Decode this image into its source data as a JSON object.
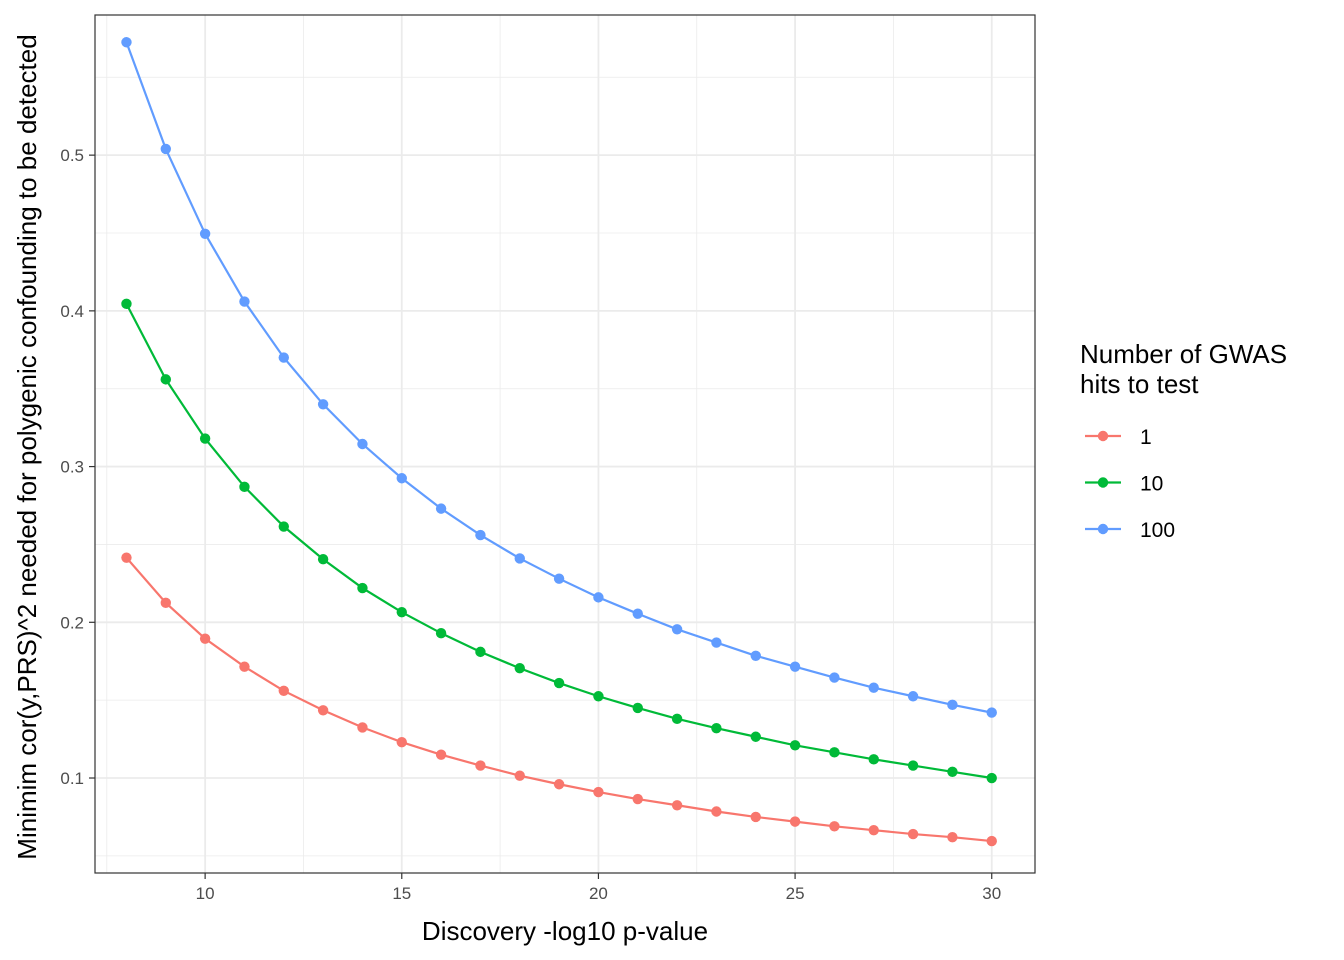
{
  "chart_data": {
    "type": "line",
    "xlabel": "Discovery -log10 p-value",
    "ylabel": "Minimim cor(y,PRS)^2 needed for polygenic confounding to be detected",
    "xlim": [
      7.2,
      31.1
    ],
    "ylim": [
      0.039,
      0.59
    ],
    "x_ticks": [
      10,
      15,
      20,
      25,
      30
    ],
    "x_tick_labels": [
      "10",
      "15",
      "20",
      "25",
      "30"
    ],
    "y_ticks": [
      0.1,
      0.2,
      0.3,
      0.4,
      0.5
    ],
    "y_tick_labels": [
      "0.1",
      "0.2",
      "0.3",
      "0.4",
      "0.5"
    ],
    "grid": true,
    "legend": {
      "title_lines": [
        "Number of GWAS",
        "hits to test"
      ],
      "position": "right"
    },
    "x": [
      8,
      9,
      10,
      11,
      12,
      13,
      14,
      15,
      16,
      17,
      18,
      19,
      20,
      21,
      22,
      23,
      24,
      25,
      26,
      27,
      28,
      29,
      30
    ],
    "series": [
      {
        "name": "1",
        "color": "#F8766D",
        "values": [
          0.2415,
          0.2125,
          0.1895,
          0.1715,
          0.156,
          0.1435,
          0.1325,
          0.123,
          0.115,
          0.108,
          0.1015,
          0.096,
          0.091,
          0.0865,
          0.0825,
          0.0785,
          0.075,
          0.072,
          0.069,
          0.0665,
          0.064,
          0.062,
          0.0595
        ]
      },
      {
        "name": "10",
        "color": "#00BA38",
        "values": [
          0.4045,
          0.356,
          0.318,
          0.287,
          0.2615,
          0.2405,
          0.222,
          0.2065,
          0.193,
          0.181,
          0.1705,
          0.161,
          0.1525,
          0.145,
          0.138,
          0.132,
          0.1265,
          0.121,
          0.1165,
          0.112,
          0.108,
          0.104,
          0.1
        ]
      },
      {
        "name": "100",
        "color": "#619CFF",
        "values": [
          0.5725,
          0.504,
          0.4495,
          0.406,
          0.37,
          0.34,
          0.3145,
          0.2925,
          0.273,
          0.256,
          0.241,
          0.228,
          0.216,
          0.2055,
          0.1955,
          0.187,
          0.1785,
          0.1715,
          0.1645,
          0.158,
          0.1525,
          0.147,
          0.142
        ]
      }
    ]
  }
}
